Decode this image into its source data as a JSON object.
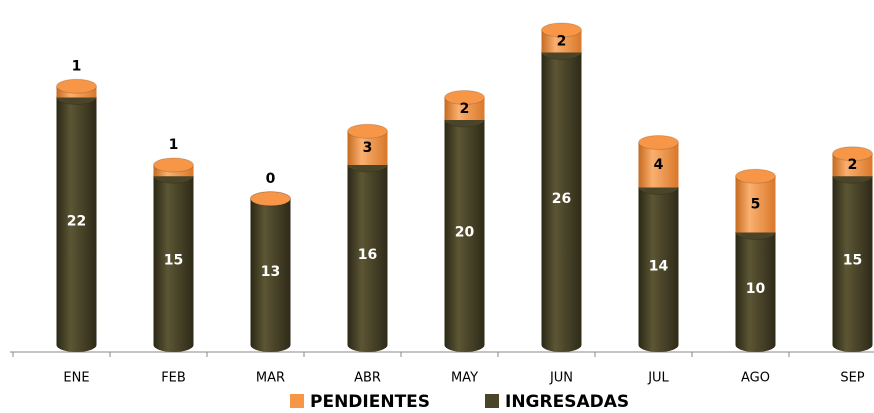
{
  "chart_data": {
    "type": "bar",
    "stacked": true,
    "categories": [
      "ENE",
      "FEB",
      "MAR",
      "ABR",
      "MAY",
      "JUN",
      "JUL",
      "AGO",
      "SEP"
    ],
    "series": [
      {
        "name": "PENDIENTES",
        "color": "#f79646",
        "values": [
          1,
          1,
          0,
          3,
          2,
          2,
          4,
          5,
          2
        ]
      },
      {
        "name": "INGRESADAS",
        "color": "#4a4428",
        "values": [
          22,
          15,
          13,
          16,
          20,
          26,
          14,
          10,
          15
        ]
      }
    ]
  }
}
